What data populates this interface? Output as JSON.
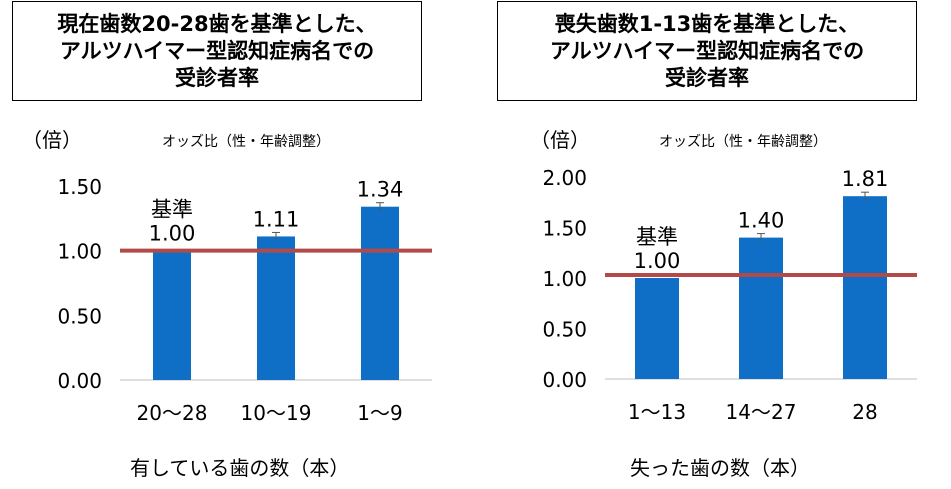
{
  "chart_data": [
    {
      "type": "bar",
      "title_lines": [
        "現在歯数20-28歯を基準とした、",
        "アルツハイマー型認知症病名での",
        "受診者率"
      ],
      "unit": "（倍）",
      "subtitle": "オッズ比（性・年齢調整）",
      "categories": [
        "20〜28",
        "10〜19",
        "1〜9"
      ],
      "values": [
        1.0,
        1.11,
        1.34
      ],
      "value_labels": [
        "1.00",
        "1.11",
        "1.34"
      ],
      "baseline_label": "基準",
      "xlabel": "有している歯の数（本）",
      "ylim": [
        0,
        1.5
      ],
      "yticks": [
        "0.00",
        "0.50",
        "1.00",
        "1.50"
      ],
      "reference_value": 1.0
    },
    {
      "type": "bar",
      "title_lines": [
        "喪失歯数1-13歯を基準とした、",
        "アルツハイマー型認知症病名での",
        "受診者率"
      ],
      "unit": "（倍）",
      "subtitle": "オッズ比（性・年齢調整）",
      "categories": [
        "1〜13",
        "14〜27",
        "28"
      ],
      "values": [
        1.0,
        1.4,
        1.81
      ],
      "value_labels": [
        "1.00",
        "1.40",
        "1.81"
      ],
      "baseline_label": "基準",
      "xlabel": "失った歯の数（本）",
      "ylim": [
        0,
        2.0
      ],
      "yticks": [
        "0.00",
        "0.50",
        "1.00",
        "1.50",
        "2.00"
      ],
      "reference_value": 1.03
    }
  ],
  "colors": {
    "bar": "#0f6fc6",
    "reference_line": "#b34a4a",
    "axis": "#bfbfbf"
  }
}
